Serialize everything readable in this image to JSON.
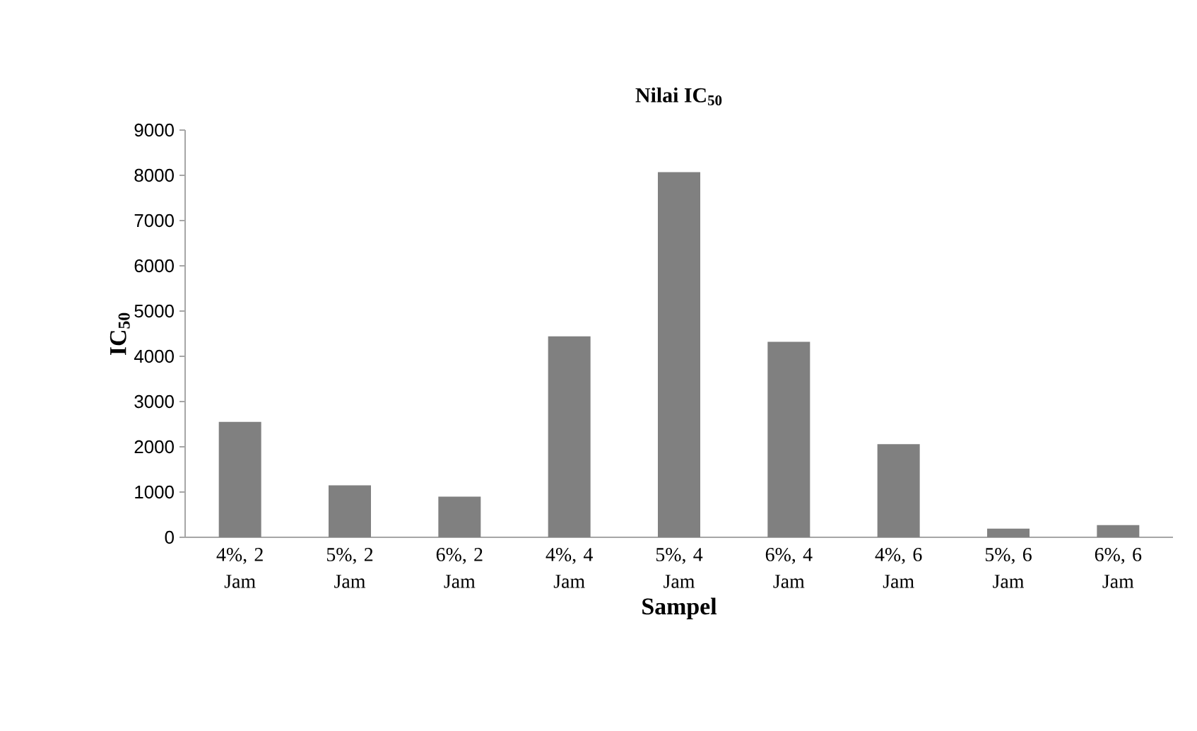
{
  "chart_data": {
    "type": "bar",
    "title": "Nilai IC$_{50}$",
    "xlabel": "Sampel",
    "ylabel": "IC$_{50}$",
    "categories": [
      "4%, 2 Jam",
      "5%, 2 Jam",
      "6%, 2 Jam",
      "4%, 4 Jam",
      "5%, 4 Jam",
      "6%, 4 Jam",
      "4%, 6 Jam",
      "5%, 6 Jam",
      "6%, 6 Jam"
    ],
    "values": [
      2550,
      1150,
      900,
      4440,
      8070,
      4320,
      2060,
      190,
      270
    ],
    "color": "#808080",
    "ylim": [
      0,
      9000
    ],
    "yticks": [
      0,
      1000,
      2000,
      3000,
      4000,
      5000,
      6000,
      7000,
      8000,
      9000
    ],
    "grid": false
  }
}
